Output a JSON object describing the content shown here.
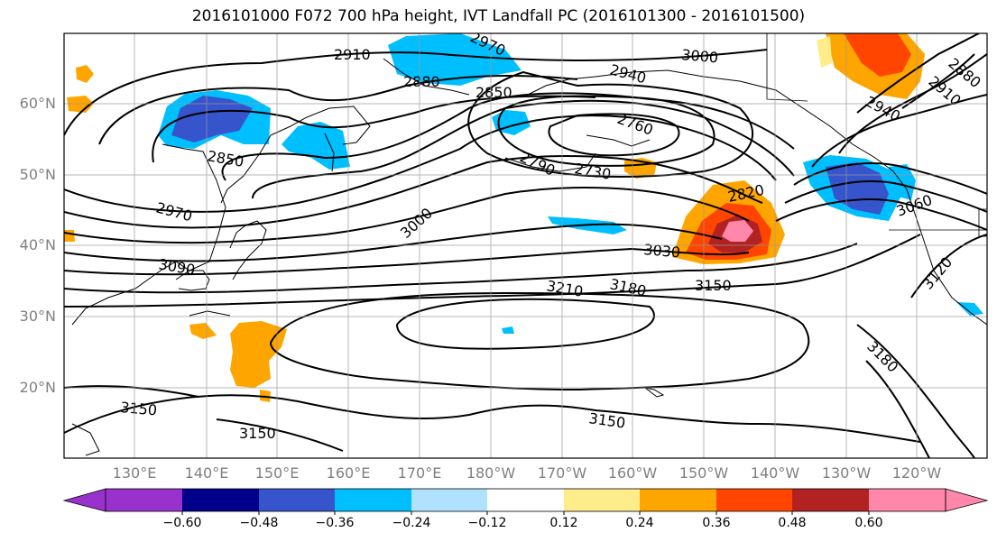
{
  "title": "2016101000 F072 700 hPa height, IVT Landfall PC (2016101300 - 2016101500)",
  "latitude_labels": [
    "60°N",
    "50°N",
    "40°N",
    "30°N",
    "20°N"
  ],
  "longitude_labels": [
    "130°E",
    "140°E",
    "150°E",
    "160°E",
    "170°E",
    "180°W",
    "170°W",
    "160°W",
    "150°W",
    "140°W",
    "130°W",
    "120°W"
  ],
  "contour_labels": [
    "2910",
    "2970",
    "3000",
    "2880",
    "2850",
    "2940",
    "2760",
    "2790",
    "2730",
    "2820",
    "3060",
    "2880",
    "2910",
    "2940",
    "2850",
    "2970",
    "3090",
    "3000",
    "3030",
    "3150",
    "3180",
    "3210",
    "3120",
    "3180",
    "3150",
    "3150",
    "3150"
  ],
  "colorbar": {
    "colors": [
      "#9932cc",
      "#00008b",
      "#3655cc",
      "#00bfff",
      "#b0e2ff",
      "#ffffff",
      "#ffec8b",
      "#ffa500",
      "#ff4500",
      "#b22222",
      "#ff88aa"
    ],
    "ticks": [
      "−0.60",
      "−0.48",
      "−0.36",
      "−0.24",
      "−0.12",
      "0.12",
      "0.24",
      "0.36",
      "0.48",
      "0.60"
    ]
  },
  "fill_colors": {
    "light_blue": "#b0e2ff",
    "blue": "#00bfff",
    "mid_blue": "#3655cc",
    "yellow": "#ffec8b",
    "orange": "#ffa500",
    "red_orange": "#ff4500",
    "dark_red": "#b22222",
    "pink": "#ff88aa"
  }
}
